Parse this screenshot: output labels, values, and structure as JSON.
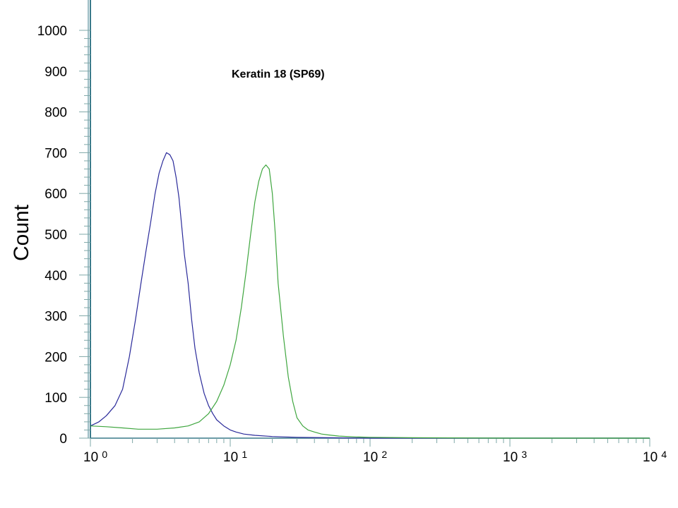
{
  "chart_data": {
    "type": "line",
    "title": "Keratin 18  (SP69)",
    "ylabel": "Count",
    "xlabel": "",
    "xscale": "log",
    "xlim": [
      1,
      10000
    ],
    "ylim": [
      0,
      1000
    ],
    "grid": false,
    "yticks": [
      0,
      100,
      200,
      300,
      400,
      500,
      600,
      700,
      800,
      900,
      1000
    ],
    "xticks": [
      {
        "value": 1,
        "base": "10",
        "exp": "0"
      },
      {
        "value": 10,
        "base": "10",
        "exp": "1"
      },
      {
        "value": 100,
        "base": "10",
        "exp": "2"
      },
      {
        "value": 1000,
        "base": "10",
        "exp": "3"
      },
      {
        "value": 10000,
        "base": "10",
        "exp": "4"
      }
    ],
    "series": [
      {
        "color": "#2a2a9a",
        "x": [
          1.0,
          1.15,
          1.3,
          1.5,
          1.7,
          1.9,
          2.1,
          2.3,
          2.5,
          2.7,
          2.9,
          3.1,
          3.3,
          3.5,
          3.7,
          3.9,
          4.1,
          4.3,
          4.5,
          4.7,
          5.0,
          5.3,
          5.6,
          6.0,
          6.5,
          7.0,
          7.5,
          8.0,
          9.0,
          10.0,
          11.0,
          12.5,
          15.0,
          20.0,
          30.0,
          50.0,
          100.0,
          1000.0,
          10000.0
        ],
        "y": [
          30,
          40,
          55,
          80,
          120,
          200,
          290,
          380,
          460,
          530,
          600,
          650,
          680,
          700,
          695,
          680,
          640,
          590,
          520,
          450,
          380,
          290,
          220,
          160,
          110,
          80,
          60,
          45,
          30,
          20,
          15,
          10,
          7,
          4,
          2,
          1,
          0,
          0,
          0
        ]
      },
      {
        "color": "#3fa63f",
        "x": [
          1.0,
          1.3,
          1.7,
          2.2,
          3.0,
          4.0,
          5.0,
          6.0,
          7.0,
          8.0,
          9.0,
          10.0,
          11.0,
          12.0,
          13.0,
          14.0,
          15.0,
          16.0,
          17.0,
          18.0,
          19.0,
          20.0,
          21.0,
          22.0,
          24.0,
          26.0,
          28.0,
          30.0,
          33.0,
          36.0,
          40.0,
          45.0,
          50.0,
          60.0,
          80.0,
          100.0,
          200.0,
          1000.0,
          10000.0
        ],
        "y": [
          30,
          28,
          25,
          22,
          22,
          25,
          30,
          40,
          60,
          90,
          130,
          180,
          240,
          320,
          410,
          500,
          580,
          630,
          660,
          670,
          660,
          600,
          500,
          380,
          250,
          150,
          90,
          50,
          30,
          20,
          15,
          10,
          8,
          5,
          3,
          2,
          1,
          0,
          0
        ]
      }
    ]
  }
}
